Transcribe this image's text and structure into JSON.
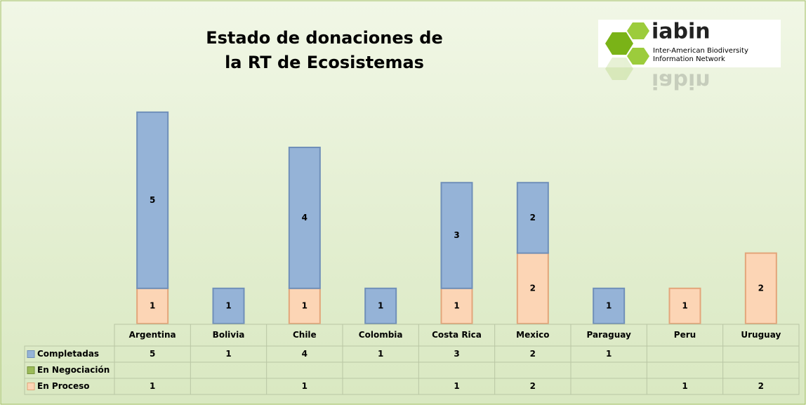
{
  "chart_data": {
    "type": "stacked_bar",
    "title": [
      "Estado de donaciones de",
      "la RT de Ecosistemas"
    ],
    "logo": {
      "name": "iabin",
      "line1": "Inter-American Biodiversity",
      "line2": "Information Network"
    },
    "categories": [
      "Argentina",
      "Bolivia",
      "Chile",
      "Colombia",
      "Costa Rica",
      "Mexico",
      "Paraguay",
      "Peru",
      "Uruguay"
    ],
    "series": [
      {
        "name": "Completadas",
        "color": "#95b3d7",
        "values": [
          5,
          1,
          4,
          1,
          3,
          2,
          1,
          null,
          null
        ]
      },
      {
        "name": "En Negociación",
        "color": "#9bbb59",
        "values": [
          null,
          null,
          null,
          null,
          null,
          null,
          null,
          null,
          null
        ]
      },
      {
        "name": "En Proceso",
        "color": "#fcd5b5",
        "values": [
          1,
          null,
          1,
          null,
          1,
          2,
          null,
          1,
          2
        ]
      }
    ]
  }
}
